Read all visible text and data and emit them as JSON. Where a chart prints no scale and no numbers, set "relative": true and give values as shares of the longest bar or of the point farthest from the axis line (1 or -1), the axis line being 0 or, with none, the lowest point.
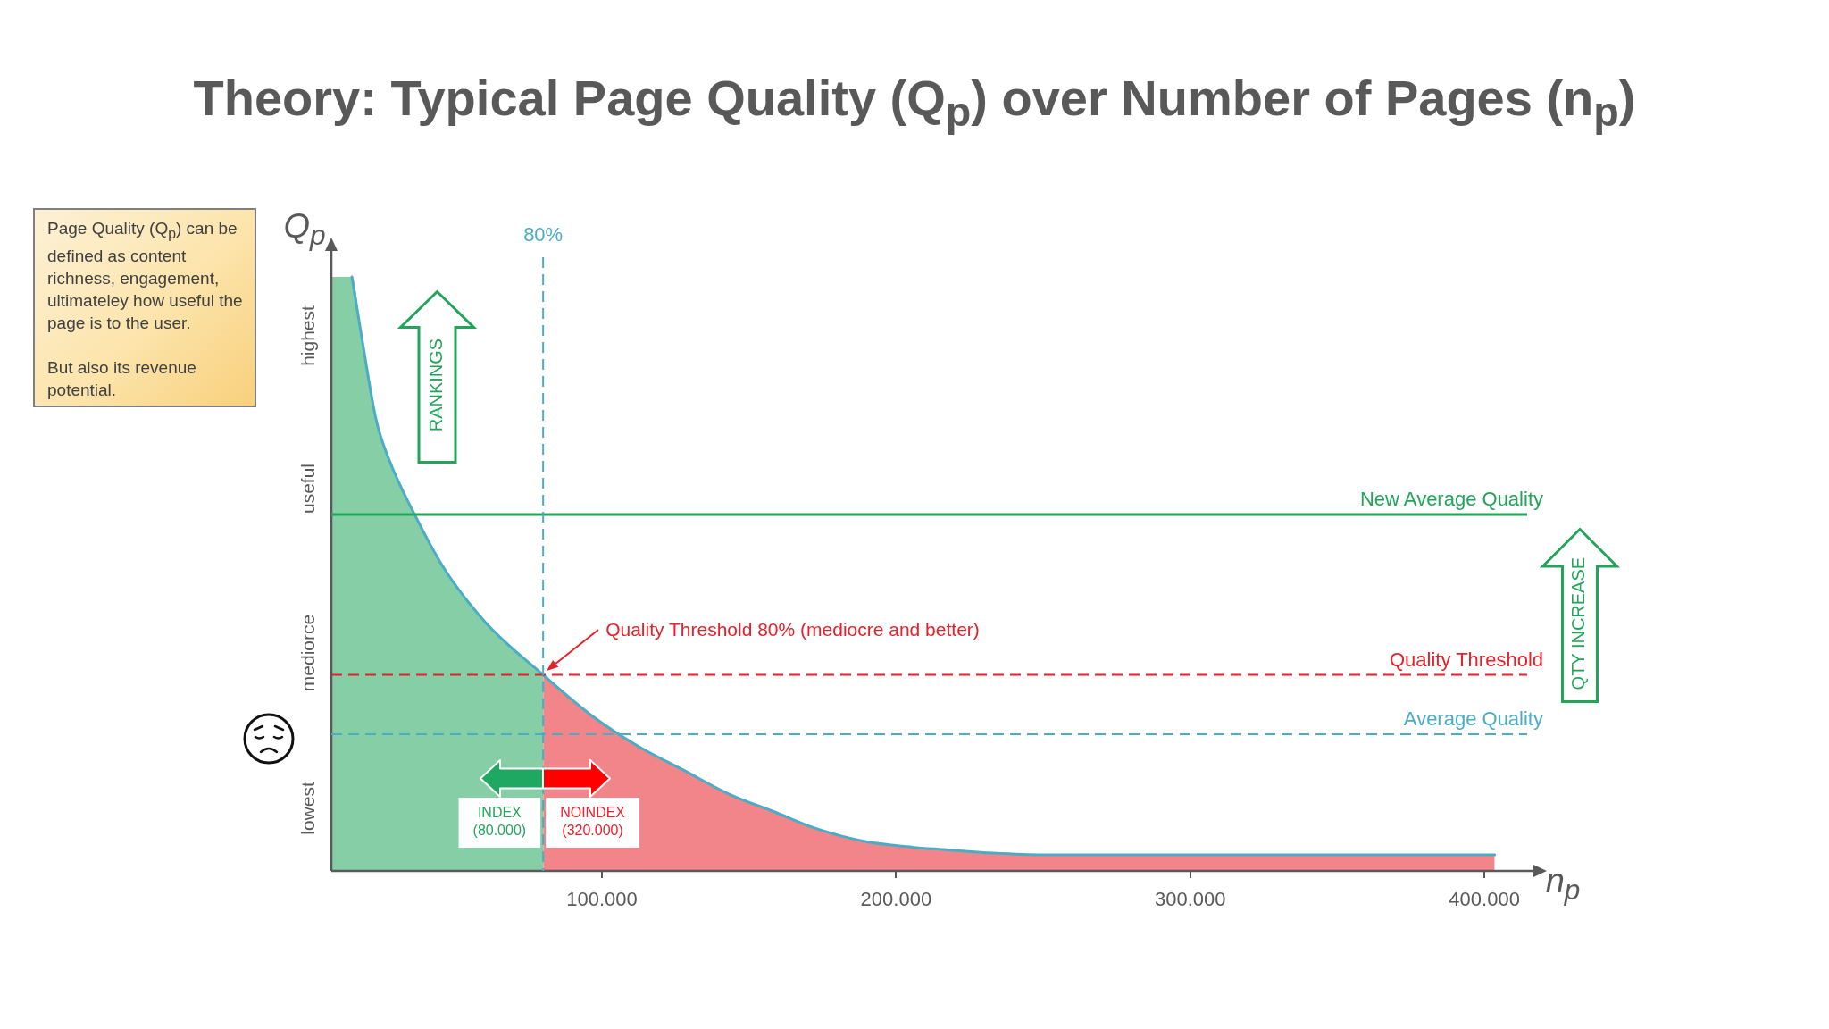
{
  "chart_data": {
    "type": "area",
    "title": "Theory: Typical Page Quality (Q$_{p}$) over Number of Pages (n$_{p}$)",
    "xlabel": "n$_{p}$",
    "ylabel": "Q$_{p}$",
    "relative": true,
    "marker": "none",
    "xlim": [
      8000,
      420000
    ],
    "xticks": [
      {
        "value": 100000,
        "label": "100.000"
      },
      {
        "value": 200000,
        "label": "200.000"
      },
      {
        "value": 300000,
        "label": "300.000"
      },
      {
        "value": 400000,
        "label": "400.000"
      }
    ],
    "series": [
      {
        "color": "#22a55b",
        "x": [
          8000,
          15000,
          18600,
          23200,
          27800,
          36300,
          46200,
          60100,
          80000
        ],
        "values": [
          1,
          1,
          0.89,
          0.76,
          0.69,
          0.6,
          0.51,
          0.42,
          0.33
        ]
      },
      {
        "color": "#e8202a",
        "x": [
          80000,
          96900,
          112200,
          127600,
          142900,
          158300,
          173600,
          189000,
          205500,
          216000,
          233000,
          250000,
          403500
        ],
        "values": [
          0.33,
          0.26,
          0.21,
          0.17,
          0.13,
          0.1,
          0.07,
          0.05,
          0.04,
          0.036,
          0.03,
          0.027,
          0.027
        ]
      },
      {
        "type": "line",
        "color": "#4bacc6",
        "x": [
          15000,
          18600,
          23200,
          27800,
          36300,
          46200,
          60100,
          80000,
          96900,
          112200,
          127600,
          142900,
          158300,
          173600,
          189000,
          205500,
          216000,
          233000,
          250000,
          403500
        ],
        "values": [
          1,
          0.89,
          0.76,
          0.69,
          0.6,
          0.51,
          0.42,
          0.33,
          0.26,
          0.21,
          0.17,
          0.13,
          0.1,
          0.07,
          0.05,
          0.04,
          0.036,
          0.03,
          0.027,
          0.027
        ]
      }
    ],
    "ref_lines": [
      {
        "axis": "y",
        "value": 0.6,
        "label": "New Average Quality",
        "color": "#22a55b",
        "line_style": "solid"
      },
      {
        "axis": "y",
        "value": 0.33,
        "label": "Quality Threshold",
        "color": "#e8202a",
        "line_style": "dashed"
      },
      {
        "axis": "y",
        "value": 0.23,
        "label": "Average Quality",
        "color": "#4bacc6",
        "line_style": "dashed"
      },
      {
        "axis": "x",
        "value": 80000,
        "color": "#4bacc6",
        "line_style": "dashed"
      }
    ],
    "annotations": [
      "Page Quality (Q$_{p}$) can be defined as content richness, engagement, ultimateley how useful the page is to the user.\n\nBut also its revenue potential.",
      "highest",
      "useful",
      "mediorce",
      "lowest",
      "RANKINGS",
      "Quality Threshold 80% (mediocre and better)",
      "INDEX\n(80.000)",
      "NOINDEX\n(320.000)",
      "QTY INCREASE",
      "80%"
    ]
  }
}
